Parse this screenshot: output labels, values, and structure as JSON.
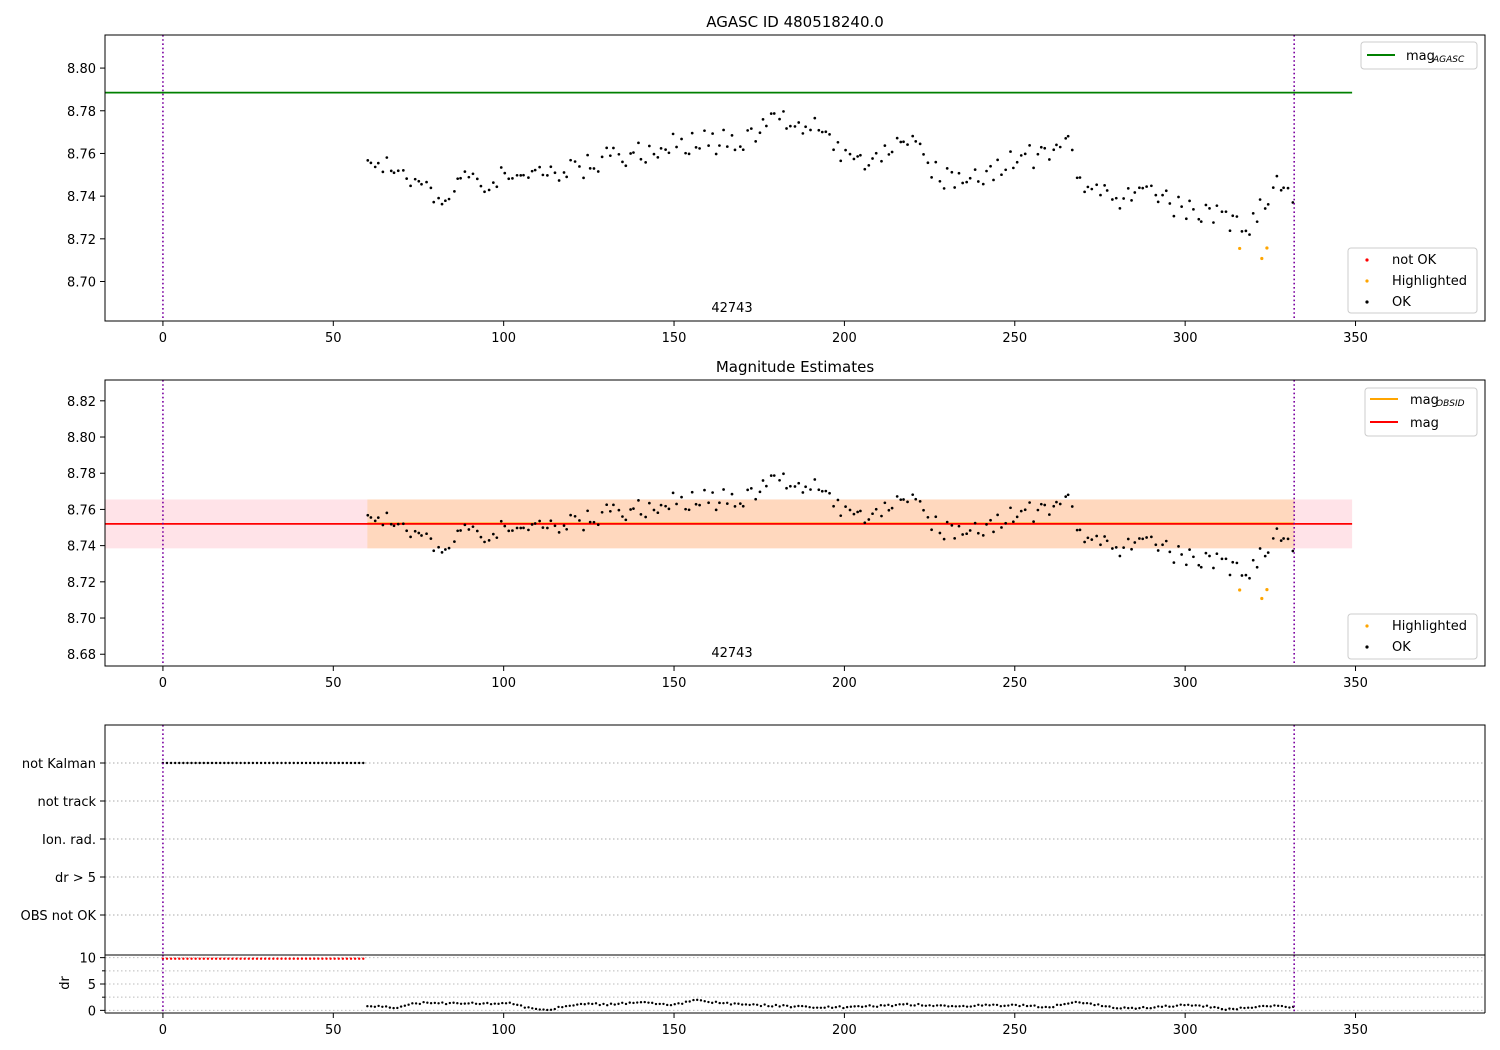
{
  "chart_data": [
    {
      "type": "scatter",
      "title": "AGASC ID 480518240.0",
      "annotation": "42743",
      "xlim": [
        -17,
        388
      ],
      "ylim": [
        8.6815,
        8.8155
      ],
      "xticks": [
        0,
        50,
        100,
        150,
        200,
        250,
        300,
        350
      ],
      "yticks": [
        8.7,
        8.72,
        8.74,
        8.76,
        8.78,
        8.8
      ],
      "ytick_labels": [
        "8.70",
        "8.72",
        "8.74",
        "8.76",
        "8.78",
        "8.80"
      ],
      "vlines": [
        0,
        332
      ],
      "hlines": [
        {
          "name": "mag",
          "subscript": "AGASC",
          "y": 8.7885,
          "x": [
            -17,
            349
          ],
          "color": "#008000"
        }
      ],
      "legend_top": {
        "placement": "top-right",
        "entries": [
          {
            "name": "mag",
            "subscript": "AGASC",
            "color": "#008000"
          }
        ]
      },
      "legend_bottom": {
        "placement": "bottom-right",
        "entries": [
          {
            "name": "not OK",
            "color": "#ff0000"
          },
          {
            "name": "Highlighted",
            "color": "#ffa500"
          },
          {
            "name": "OK",
            "color": "#000000"
          }
        ]
      },
      "highlighted_points": {
        "x": [
          316,
          322.5,
          324
        ],
        "y": [
          8.7155,
          8.7108,
          8.7157
        ]
      },
      "ok_trend": {
        "x": [
          60,
          70,
          80,
          90,
          100,
          110,
          120,
          130,
          140,
          150,
          160,
          170,
          180,
          186,
          190,
          200,
          210,
          220,
          230,
          240,
          250,
          260,
          266,
          270,
          280,
          290,
          300,
          310,
          320,
          326,
          332
        ],
        "y": [
          8.756,
          8.75,
          8.741,
          8.747,
          8.748,
          8.752,
          8.751,
          8.757,
          8.76,
          8.764,
          8.765,
          8.766,
          8.774,
          8.777,
          8.773,
          8.756,
          8.76,
          8.763,
          8.748,
          8.75,
          8.757,
          8.759,
          8.765,
          8.742,
          8.74,
          8.741,
          8.733,
          8.73,
          8.726,
          8.747,
          8.741
        ]
      },
      "ok_x_range": [
        60,
        332
      ],
      "ok_spacing": 1.15,
      "ok_scatter": 0.006
    },
    {
      "type": "scatter",
      "title": "Magnitude Estimates",
      "annotation": "42743",
      "xlim": [
        -17,
        388
      ],
      "ylim": [
        8.6735,
        8.8315
      ],
      "xticks": [
        0,
        50,
        100,
        150,
        200,
        250,
        300,
        350
      ],
      "yticks": [
        8.68,
        8.7,
        8.72,
        8.74,
        8.76,
        8.78,
        8.8,
        8.82
      ],
      "ytick_labels": [
        "8.68",
        "8.70",
        "8.72",
        "8.74",
        "8.76",
        "8.78",
        "8.80",
        "8.82"
      ],
      "vlines": [
        0,
        332
      ],
      "bands": [
        {
          "y": [
            8.7385,
            8.7655
          ],
          "x": [
            -17,
            349
          ],
          "color": "#ffc0cb",
          "opacity": 0.45
        },
        {
          "y": [
            8.7385,
            8.7655
          ],
          "x": [
            60,
            332
          ],
          "color": "#ffa500",
          "opacity": 0.18
        }
      ],
      "hlines": [
        {
          "name": "mag",
          "subscript": "OBSID",
          "y": 8.7522,
          "x": [
            60,
            332
          ],
          "color": "#ffa500"
        },
        {
          "name": "mag",
          "y": 8.752,
          "x": [
            -17,
            349
          ],
          "color": "#ff0000"
        }
      ],
      "legend_top": {
        "placement": "top-right",
        "entries": [
          {
            "name": "mag",
            "subscript": "OBSID",
            "color": "#ffa500"
          },
          {
            "name": "mag",
            "color": "#ff0000"
          }
        ]
      },
      "legend_bottom": {
        "placement": "bottom-right",
        "entries": [
          {
            "name": "Highlighted",
            "color": "#ffa500"
          },
          {
            "name": "OK",
            "color": "#000000"
          }
        ]
      },
      "highlighted_points": {
        "x": [
          316,
          322.5,
          324
        ],
        "y": [
          8.7155,
          8.7108,
          8.7157
        ]
      },
      "ok_trend": {
        "x": [
          60,
          70,
          80,
          90,
          100,
          110,
          120,
          130,
          140,
          150,
          160,
          170,
          180,
          186,
          190,
          200,
          210,
          220,
          230,
          240,
          250,
          260,
          266,
          270,
          280,
          290,
          300,
          310,
          320,
          326,
          332
        ],
        "y": [
          8.756,
          8.75,
          8.741,
          8.747,
          8.748,
          8.752,
          8.751,
          8.757,
          8.76,
          8.764,
          8.765,
          8.766,
          8.774,
          8.777,
          8.773,
          8.756,
          8.76,
          8.763,
          8.748,
          8.75,
          8.757,
          8.759,
          8.765,
          8.742,
          8.74,
          8.741,
          8.733,
          8.73,
          8.726,
          8.747,
          8.741
        ]
      },
      "ok_x_range": [
        60,
        332
      ],
      "ok_spacing": 1.15,
      "ok_scatter": 0.006
    },
    {
      "type": "scatter",
      "title": "",
      "xlim": [
        -17,
        388
      ],
      "categories": [
        "not Kalman",
        "not track",
        "Ion. rad.",
        "dr > 5",
        "OBS not OK"
      ],
      "vlines": [
        0,
        332
      ],
      "flag_points": {
        "category": "not Kalman",
        "x_range": [
          0,
          59
        ],
        "spacing": 1.2,
        "color": "#000000"
      }
    },
    {
      "type": "scatter",
      "title": "",
      "ylabel": "dr",
      "xlim": [
        -17,
        388
      ],
      "xticks": [
        0,
        50,
        100,
        150,
        200,
        250,
        300,
        350
      ],
      "ylim": [
        -0.5,
        10.5
      ],
      "yticks": [
        0,
        5,
        10
      ],
      "ytick_labels": [
        "0",
        "5",
        "10"
      ],
      "y_gridlines": [
        0,
        2.5,
        5,
        7.5,
        10
      ],
      "vlines": [
        0,
        332
      ],
      "dr_flagged": {
        "x_range": [
          0,
          59
        ],
        "spacing": 1.2,
        "y": 9.8,
        "color": "#ff0000"
      },
      "dr_trend": {
        "x": [
          60,
          68,
          75,
          90,
          102,
          108,
          114,
          122,
          130,
          140,
          150,
          156,
          165,
          175,
          190,
          200,
          220,
          230,
          250,
          260,
          268,
          280,
          290,
          300,
          305,
          312,
          320,
          325,
          332
        ],
        "y": [
          0.8,
          0.5,
          1.4,
          1.3,
          1.3,
          0.3,
          0.2,
          1.3,
          1.1,
          1.5,
          1.0,
          1.9,
          1.3,
          1.0,
          0.6,
          0.6,
          1.1,
          0.8,
          1.0,
          0.6,
          1.7,
          0.4,
          0.5,
          1.0,
          0.9,
          0.2,
          0.5,
          0.9,
          0.5
        ]
      },
      "dr_x_range": [
        60,
        332
      ],
      "dr_spacing": 1.1
    }
  ]
}
